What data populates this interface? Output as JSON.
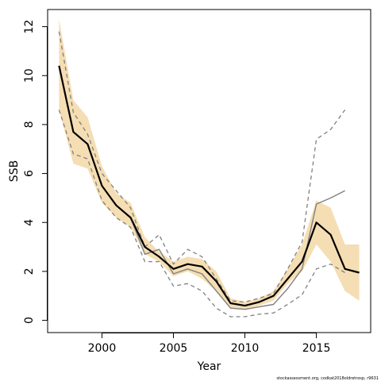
{
  "chart_data": {
    "type": "line",
    "xlabel": "Year",
    "ylabel": "SSB",
    "xlim": [
      1996.2,
      2018.8
    ],
    "ylim": [
      -0.5,
      12.7
    ],
    "xticks": [
      2000,
      2005,
      2010,
      2015
    ],
    "yticks": [
      0,
      2,
      4,
      6,
      8,
      10,
      12
    ],
    "grid": false,
    "credit": "stockassessment.org, codkat2018oldretrosp, r9631",
    "colors": {
      "band": "#f5deb3",
      "estimate": "#000000",
      "retro": "#808080"
    },
    "ci_band": {
      "x": [
        1997,
        1998,
        1999,
        2000,
        2001,
        2002,
        2003,
        2004,
        2005,
        2006,
        2007,
        2008,
        2009,
        2010,
        2011,
        2012,
        2013,
        2014,
        2015,
        2016,
        2017,
        2018
      ],
      "lower": [
        8.6,
        6.4,
        6.2,
        4.8,
        4.2,
        3.8,
        2.7,
        2.4,
        1.8,
        2.0,
        1.7,
        1.2,
        0.5,
        0.45,
        0.6,
        0.8,
        1.5,
        2.0,
        3.1,
        2.4,
        1.2,
        0.8
      ],
      "upper": [
        12.3,
        9.0,
        8.3,
        6.3,
        5.2,
        4.8,
        3.4,
        2.8,
        2.4,
        2.6,
        2.5,
        2.0,
        0.9,
        0.75,
        0.9,
        1.2,
        2.1,
        3.1,
        4.9,
        4.6,
        3.1,
        3.1
      ]
    },
    "series": [
      {
        "role": "estimate",
        "x": [
          1997,
          1998,
          1999,
          2000,
          2001,
          2002,
          2003,
          2004,
          2005,
          2006,
          2007,
          2008,
          2009,
          2010,
          2011,
          2012,
          2013,
          2014,
          2015,
          2016,
          2017,
          2018
        ],
        "values": [
          10.4,
          7.7,
          7.2,
          5.5,
          4.7,
          4.2,
          3.0,
          2.6,
          2.1,
          2.3,
          2.2,
          1.6,
          0.7,
          0.6,
          0.75,
          1.0,
          1.7,
          2.4,
          4.0,
          3.5,
          2.1,
          1.95
        ]
      },
      {
        "role": "retro-fit",
        "x": [
          1997,
          1998,
          1999,
          2000,
          2001,
          2002,
          2003,
          2004,
          2005,
          2006,
          2007,
          2008,
          2009,
          2010,
          2011,
          2012,
          2013,
          2014,
          2015,
          2016,
          2017
        ],
        "values": [
          10.4,
          7.7,
          7.2,
          5.5,
          4.7,
          4.2,
          2.7,
          2.9,
          1.9,
          2.1,
          1.9,
          1.2,
          0.5,
          0.45,
          0.55,
          0.65,
          1.3,
          2.1,
          4.75,
          5.0,
          5.3
        ]
      },
      {
        "role": "retro-upper",
        "x": [
          1997,
          1998,
          1999,
          2000,
          2001,
          2002,
          2003,
          2004,
          2005,
          2006,
          2007,
          2008,
          2009,
          2010,
          2011,
          2012,
          2013,
          2014,
          2015,
          2016,
          2017
        ],
        "values": [
          11.8,
          8.5,
          7.6,
          6.0,
          5.3,
          4.6,
          3.0,
          3.5,
          2.3,
          2.9,
          2.6,
          1.7,
          0.8,
          0.75,
          0.9,
          1.1,
          2.1,
          3.2,
          7.4,
          7.8,
          8.6
        ]
      },
      {
        "role": "retro-lower",
        "x": [
          1997,
          1998,
          1999,
          2000,
          2001,
          2002,
          2003,
          2004,
          2005,
          2006,
          2007,
          2008,
          2009,
          2010,
          2011,
          2012,
          2013,
          2014,
          2015,
          2016,
          2017
        ],
        "values": [
          8.6,
          6.8,
          6.6,
          4.9,
          4.2,
          3.8,
          2.4,
          2.4,
          1.4,
          1.5,
          1.2,
          0.5,
          0.15,
          0.15,
          0.25,
          0.3,
          0.65,
          1.05,
          2.1,
          2.3,
          1.95
        ]
      }
    ]
  }
}
